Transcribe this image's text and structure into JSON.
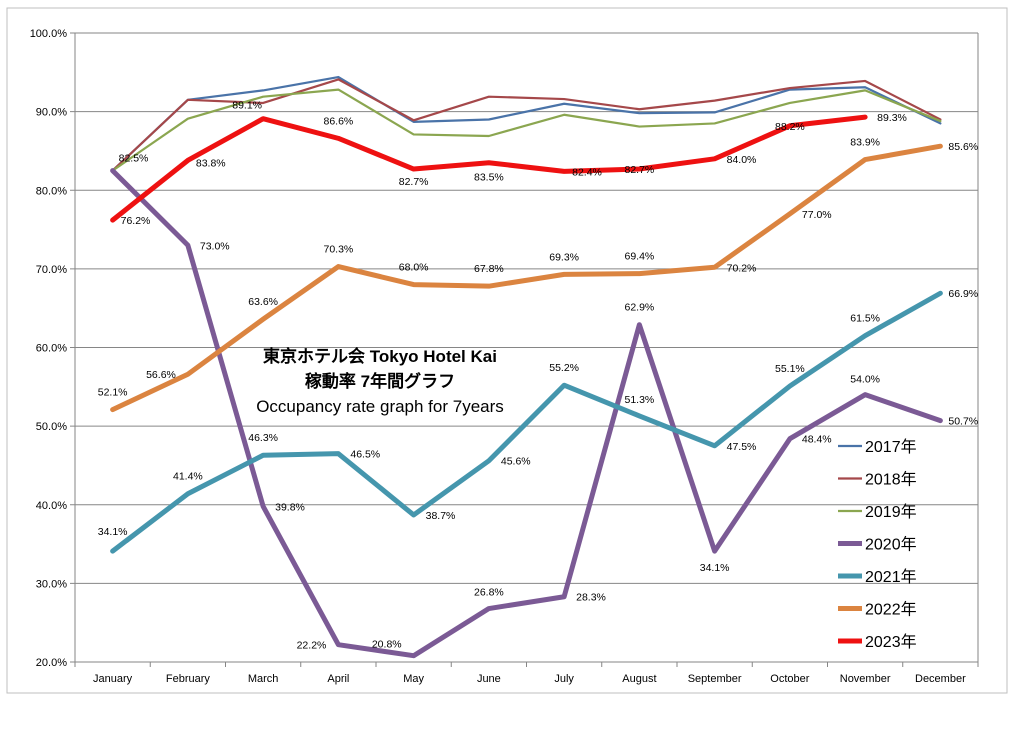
{
  "chart_data": {
    "type": "line",
    "title_lines": [
      "東京ホテル会 Tokyo Hotel Kai",
      "稼動率 7年間グラフ",
      "Occupancy rate graph for 7years"
    ],
    "xlabel": "",
    "ylabel": "",
    "categories": [
      "January",
      "February",
      "March",
      "April",
      "May",
      "June",
      "July",
      "August",
      "September",
      "October",
      "November",
      "December"
    ],
    "ylim": [
      20,
      100
    ],
    "yticks": [
      20,
      30,
      40,
      50,
      60,
      70,
      80,
      90,
      100
    ],
    "ytick_labels": [
      "20.0%",
      "30.0%",
      "40.0%",
      "50.0%",
      "60.0%",
      "70.0%",
      "80.0%",
      "90.0%",
      "100.0%"
    ],
    "grid": "horizontal",
    "legend_position": "bottom-right",
    "series": [
      {
        "name": "2017年",
        "color": "#4a73a8",
        "thick": false,
        "values": [
          82.5,
          91.5,
          92.7,
          94.4,
          88.7,
          89.0,
          91.0,
          89.8,
          89.9,
          92.8,
          93.1,
          88.5
        ]
      },
      {
        "name": "2018年",
        "color": "#a5484a",
        "thick": false,
        "values": [
          82.5,
          91.5,
          91.1,
          94.1,
          88.9,
          91.9,
          91.6,
          90.3,
          91.4,
          93.0,
          93.9,
          89.0
        ]
      },
      {
        "name": "2019年",
        "color": "#8ba650",
        "thick": false,
        "values": [
          82.5,
          89.1,
          91.9,
          92.8,
          87.1,
          86.9,
          89.6,
          88.1,
          88.5,
          91.1,
          92.7,
          88.8
        ]
      },
      {
        "name": "2020年",
        "color": "#7b5a95",
        "thick": true,
        "values": [
          82.5,
          73.0,
          39.8,
          22.2,
          20.8,
          26.8,
          28.3,
          62.9,
          34.1,
          48.4,
          54.0,
          50.7
        ],
        "labels": [
          "82.5%",
          "73.0%",
          "39.8%",
          "22.2%",
          "20.8%",
          "26.8%",
          "28.3%",
          "62.9%",
          "34.1%",
          "48.4%",
          "54.0%",
          "50.7%"
        ]
      },
      {
        "name": "2021年",
        "color": "#4596ad",
        "thick": true,
        "values": [
          34.1,
          41.4,
          46.3,
          46.5,
          38.7,
          45.6,
          55.2,
          51.3,
          47.5,
          55.1,
          61.5,
          66.9
        ],
        "labels": [
          "34.1%",
          "41.4%",
          "46.3%",
          "46.5%",
          "38.7%",
          "45.6%",
          "55.2%",
          "51.3%",
          "47.5%",
          "55.1%",
          "61.5%",
          "66.9%"
        ]
      },
      {
        "name": "2022年",
        "color": "#db8440",
        "thick": true,
        "values": [
          52.1,
          56.6,
          63.6,
          70.3,
          68.0,
          67.8,
          69.3,
          69.4,
          70.2,
          77.0,
          83.9,
          85.6
        ],
        "labels": [
          "52.1%",
          "56.6%",
          "63.6%",
          "70.3%",
          "68.0%",
          "67.8%",
          "69.3%",
          "69.4%",
          "70.2%",
          "77.0%",
          "83.9%",
          "85.6%"
        ]
      },
      {
        "name": "2023年",
        "color": "#ee1111",
        "thick": true,
        "values": [
          76.2,
          83.8,
          89.1,
          86.6,
          82.7,
          83.5,
          82.4,
          82.7,
          84.0,
          88.2,
          89.3,
          null
        ],
        "labels": [
          "76.2%",
          "83.8%",
          "89.1%",
          "86.6%",
          "82.7%",
          "83.5%",
          "82.4%",
          "82.7%",
          "84.0%",
          "88.2%",
          "89.3%",
          ""
        ]
      }
    ]
  }
}
